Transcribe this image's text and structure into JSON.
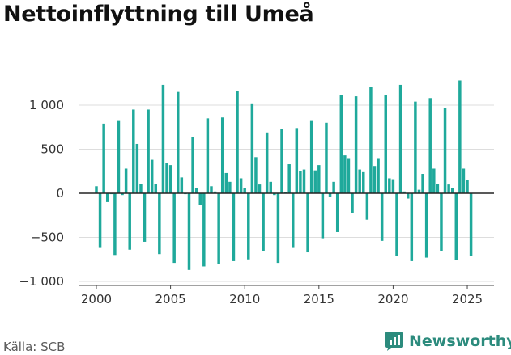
{
  "title": "Nettoinflyttning till Umeå",
  "source": "Källa: SCB",
  "brand": "Newsworthy",
  "colors": {
    "bar": "#1fa99b",
    "brand": "#2c8b7d",
    "grid": "#dddddd",
    "zero": "#222222"
  },
  "chart_data": {
    "type": "bar",
    "title": "Nettoinflyttning till Umeå",
    "xlabel": "",
    "ylabel": "",
    "xlim": [
      1998.8,
      2026.8
    ],
    "ylim": [
      -1000,
      1300
    ],
    "yticks": [
      1000,
      500,
      0,
      -500,
      -1000
    ],
    "ytick_labels": [
      "1 000",
      "500",
      "0",
      "−500",
      "−1 000"
    ],
    "xticks": [
      2000,
      2005,
      2010,
      2015,
      2020,
      2025
    ],
    "xtick_labels": [
      "2000",
      "2005",
      "2010",
      "2015",
      "2020",
      "2025"
    ],
    "grid": true,
    "bar_width_years": 0.19,
    "x": [
      2000.0,
      2000.25,
      2000.5,
      2000.75,
      2001.0,
      2001.25,
      2001.5,
      2001.75,
      2002.0,
      2002.25,
      2002.5,
      2002.75,
      2003.0,
      2003.25,
      2003.5,
      2003.75,
      2004.0,
      2004.25,
      2004.5,
      2004.75,
      2005.0,
      2005.25,
      2005.5,
      2005.75,
      2006.0,
      2006.25,
      2006.5,
      2006.75,
      2007.0,
      2007.25,
      2007.5,
      2007.75,
      2008.0,
      2008.25,
      2008.5,
      2008.75,
      2009.0,
      2009.25,
      2009.5,
      2009.75,
      2010.0,
      2010.25,
      2010.5,
      2010.75,
      2011.0,
      2011.25,
      2011.5,
      2011.75,
      2012.0,
      2012.25,
      2012.5,
      2012.75,
      2013.0,
      2013.25,
      2013.5,
      2013.75,
      2014.0,
      2014.25,
      2014.5,
      2014.75,
      2015.0,
      2015.25,
      2015.5,
      2015.75,
      2016.0,
      2016.25,
      2016.5,
      2016.75,
      2017.0,
      2017.25,
      2017.5,
      2017.75,
      2018.0,
      2018.25,
      2018.5,
      2018.75,
      2019.0,
      2019.25,
      2019.5,
      2019.75,
      2020.0,
      2020.25,
      2020.5,
      2020.75,
      2021.0,
      2021.25,
      2021.5,
      2021.75,
      2022.0,
      2022.25,
      2022.5,
      2022.75,
      2023.0,
      2023.25,
      2023.5,
      2023.75,
      2024.0,
      2024.25,
      2024.5,
      2024.75,
      2025.0,
      2025.25
    ],
    "values": [
      80,
      -620,
      790,
      -100,
      -10,
      -700,
      820,
      -20,
      280,
      -640,
      950,
      560,
      110,
      -550,
      950,
      380,
      110,
      -690,
      1230,
      340,
      320,
      -790,
      1150,
      180,
      -10,
      -870,
      640,
      60,
      -130,
      -830,
      850,
      80,
      20,
      -800,
      860,
      230,
      130,
      -770,
      1160,
      170,
      60,
      -750,
      1020,
      410,
      100,
      -660,
      690,
      130,
      -20,
      -790,
      730,
      10,
      330,
      -620,
      740,
      250,
      270,
      -670,
      820,
      260,
      320,
      -510,
      800,
      -40,
      130,
      -440,
      1110,
      430,
      390,
      -220,
      1100,
      270,
      240,
      -300,
      1210,
      310,
      390,
      -540,
      1110,
      170,
      160,
      -710,
      1230,
      20,
      -60,
      -770,
      1040,
      40,
      220,
      -730,
      1080,
      280,
      110,
      -660,
      970,
      100,
      60,
      -760,
      1280,
      280,
      150,
      -710
    ]
  }
}
